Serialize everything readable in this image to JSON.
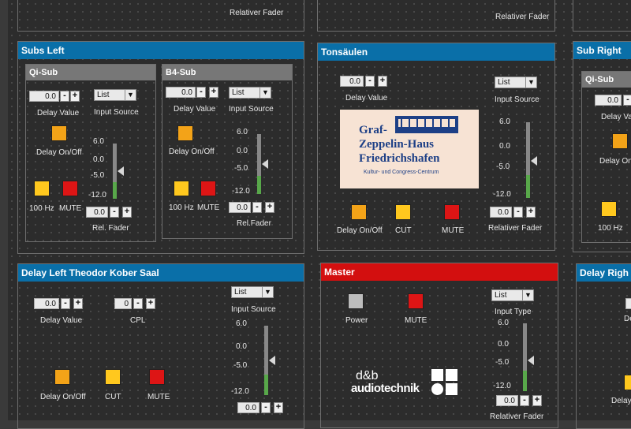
{
  "colors": {
    "panel_blue": "#0a6fa8",
    "panel_red": "#d30f0f",
    "orange": "#f3a318",
    "yellow": "#ffc81e",
    "red": "#dd1515",
    "power_gray": "#bcbcbc",
    "fader_green": "#58a84a"
  },
  "top_partial": {
    "left_label": "Relativer Fader",
    "mid_label": "Relativer Fader"
  },
  "subs_left": {
    "title": "Subs Left",
    "qi": {
      "title": "Qi-Sub",
      "delay_value": "0.0",
      "delay_label": "Delay Value",
      "source_value": "List",
      "source_label": "Input Source",
      "delay_onoff": "Delay On/Off",
      "ticks": [
        "6.0",
        "0.0",
        "-5.0",
        "-12.0"
      ],
      "hz": "100 Hz",
      "mute": "MUTE",
      "fader_value": "0.0",
      "fader_label": "Rel. Fader",
      "level": 0.3
    },
    "b4": {
      "title": "B4-Sub",
      "delay_value": "0.0",
      "delay_label": "Delay Value",
      "source_value": "List",
      "source_label": "Input Source",
      "delay_onoff": "Delay On/Off",
      "ticks": [
        "6.0",
        "0.0",
        "-5.0",
        "-12.0"
      ],
      "hz": "100 Hz",
      "mute": "MUTE",
      "fader_value": "0.0",
      "fader_label": "Rel.Fader",
      "level": 0.3
    }
  },
  "tonsaeulen": {
    "title": "Tonsäulen",
    "delay_value": "0.0",
    "delay_label": "Delay Value",
    "source_value": "List",
    "source_label": "Input Source",
    "logo_line1": "Graf-",
    "logo_line2": "Zeppelin-Haus",
    "logo_line3": "Friedrichshafen",
    "logo_sub": "Kultur- und Congress-Centrum",
    "ticks": [
      "6.0",
      "0.0",
      "-5.0",
      "-12.0"
    ],
    "delay_onoff": "Delay On/Off",
    "cut": "CUT",
    "mute": "MUTE",
    "fader_value": "0.0",
    "fader_label": "Relativer Fader",
    "level": 0.3
  },
  "sub_right": {
    "title": "Sub Right",
    "qi_title": "Qi-Sub",
    "delay_value": "0.0",
    "delay_label": "Delay Va",
    "delay_onoff": "Delay On",
    "hz": "100 Hz"
  },
  "delay_left": {
    "title": "Delay Left Theodor Kober Saal",
    "delay_value": "0.0",
    "delay_label": "Delay Value",
    "cpl_value": "0",
    "cpl_label": "CPL",
    "source_value": "List",
    "source_label": "Input Source",
    "ticks": [
      "6.0",
      "0.0",
      "-5.0",
      "-12.0"
    ],
    "delay_onoff": "Delay On/Off",
    "cut": "CUT",
    "mute": "MUTE",
    "fader_value": "0.0",
    "level": 0.3
  },
  "master": {
    "title": "Master",
    "power": "Power",
    "mute": "MUTE",
    "type_value": "List",
    "type_label": "Input Type",
    "ticks": [
      "6.0",
      "0.0",
      "-5.0",
      "-12.0"
    ],
    "brand_line1": "d&b",
    "brand_line2": "audiotechnik",
    "fader_value": "0.0",
    "fader_label": "Relativer Fader",
    "level": 0.3
  },
  "delay_right": {
    "title": "Delay Righ",
    "label1": "De",
    "label2": "Delay"
  }
}
